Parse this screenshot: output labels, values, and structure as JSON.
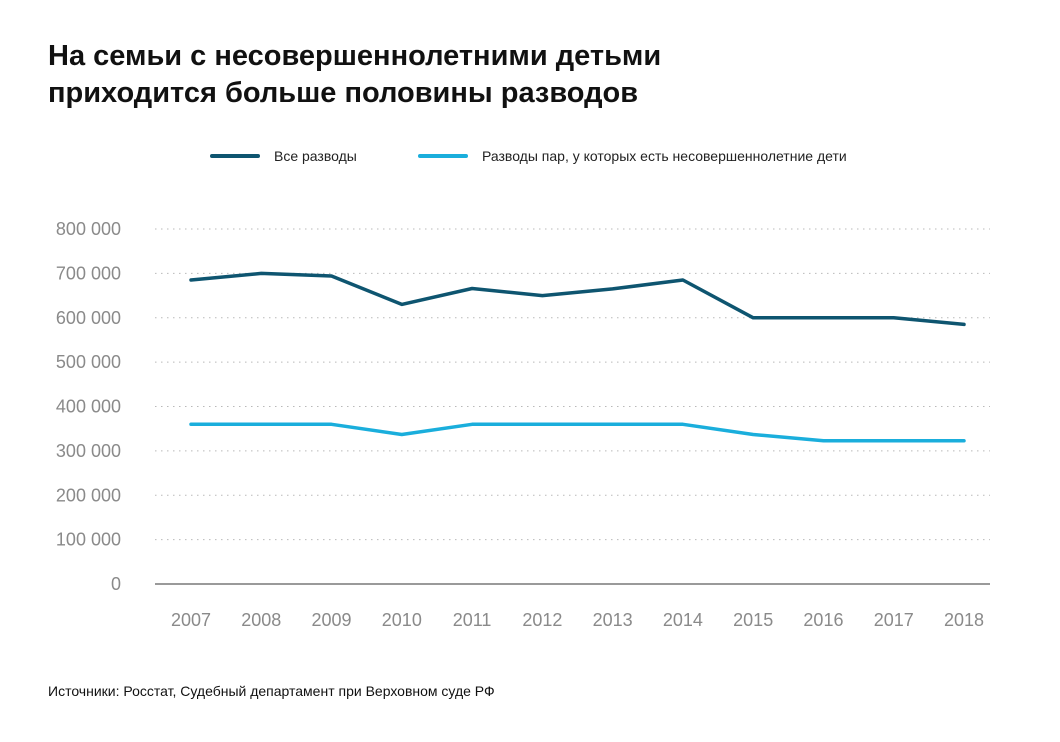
{
  "title_line1": "На семьи с несовершеннолетними детьми",
  "title_line2": "приходится больше половины разводов",
  "source": "Источники: Росстат, Судебный департамент при Верховном суде РФ",
  "colors": {
    "series1": "#0e5570",
    "series2": "#1aaedc",
    "grid": "#b9b9b9",
    "baseline": "#9a9a9a",
    "tick": "#8a8a8a"
  },
  "chart_data": {
    "type": "line",
    "x": [
      "2007",
      "2008",
      "2009",
      "2010",
      "2011",
      "2012",
      "2013",
      "2014",
      "2015",
      "2016",
      "2017",
      "2018"
    ],
    "series": [
      {
        "name": "Все разводы",
        "color": "#0e5570",
        "values": [
          685000,
          700000,
          694000,
          630000,
          666000,
          650000,
          665000,
          685000,
          600000,
          600000,
          600000,
          585000
        ]
      },
      {
        "name": "Разводы пар, у которых есть несовершеннолетние дети",
        "color": "#1aaedc",
        "values": [
          360000,
          360000,
          360000,
          337000,
          360000,
          360000,
          360000,
          360000,
          337000,
          323000,
          323000,
          323000
        ]
      }
    ],
    "yticks": [
      "0",
      "100 000",
      "200 000",
      "300 000",
      "400 000",
      "500 000",
      "600 000",
      "700 000",
      "800 000"
    ],
    "ylim": [
      0,
      800000
    ],
    "grid": true,
    "legend": "top-center"
  }
}
